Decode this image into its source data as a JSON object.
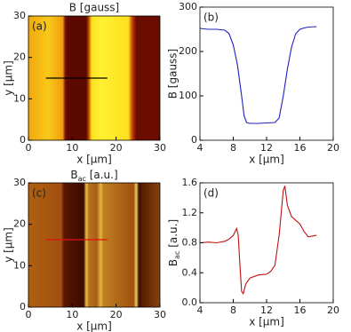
{
  "chart_data": [
    {
      "type": "image",
      "title": "B [gauss]",
      "panel_label": "(a)",
      "xlabel": "x [µm]",
      "ylabel": "y [µm]",
      "xlim": [
        0,
        30
      ],
      "xticks": [
        0,
        10,
        20,
        30
      ],
      "ylim": [
        0,
        30
      ],
      "yticks": [
        0,
        10,
        20,
        30
      ]
    },
    {
      "type": "line",
      "panel_label": "(b)",
      "xlabel": "x [µm]",
      "ylabel": "B [gauss]",
      "color": "#2020c0",
      "xlim": [
        4,
        20
      ],
      "xticks": [
        4,
        8,
        12,
        16,
        20
      ],
      "ylim": [
        0,
        300
      ],
      "yticks": [
        0,
        100,
        200,
        300
      ],
      "x": [
        4,
        5,
        6,
        7,
        7.5,
        8,
        8.5,
        9,
        9.3,
        9.6,
        10,
        11,
        12,
        13,
        13.5,
        14,
        14.5,
        15,
        15.5,
        16,
        16.5,
        17,
        18
      ],
      "values": [
        252,
        250,
        250,
        248,
        240,
        215,
        170,
        100,
        55,
        40,
        38,
        38,
        39,
        40,
        50,
        100,
        160,
        210,
        240,
        250,
        253,
        255,
        256
      ]
    },
    {
      "type": "image",
      "title": [
        "B",
        "ac",
        " [a.u.]"
      ],
      "panel_label": "(c)",
      "xlabel": "x [µm]",
      "ylabel": "y [µm]",
      "xlim": [
        0,
        30
      ],
      "xticks": [
        0,
        10,
        20,
        30
      ],
      "ylim": [
        0,
        30
      ],
      "yticks": [
        0,
        10,
        20,
        30
      ]
    },
    {
      "type": "line",
      "panel_label": "(d)",
      "xlabel": "x [µm]",
      "ylabel": [
        "B",
        "ac",
        " [a.u.]"
      ],
      "color": "#c01010",
      "xlim": [
        4,
        20
      ],
      "xticks": [
        4,
        8,
        12,
        16,
        20
      ],
      "ylim": [
        0,
        1.6
      ],
      "yticks": [
        {
          "value": 0,
          "label": "0.0"
        },
        0.4,
        0.8,
        1.2,
        1.6
      ],
      "x": [
        4,
        5,
        6,
        7,
        7.5,
        8,
        8.4,
        8.6,
        8.8,
        9,
        9.2,
        9.5,
        10,
        11,
        12,
        12.5,
        13,
        13.5,
        14,
        14.2,
        14.5,
        15,
        16,
        16.5,
        17,
        18
      ],
      "values": [
        0.8,
        0.81,
        0.8,
        0.82,
        0.85,
        0.9,
        0.99,
        0.9,
        0.5,
        0.15,
        0.12,
        0.25,
        0.33,
        0.37,
        0.38,
        0.42,
        0.5,
        0.9,
        1.5,
        1.56,
        1.3,
        1.15,
        1.05,
        0.95,
        0.88,
        0.9
      ]
    }
  ]
}
